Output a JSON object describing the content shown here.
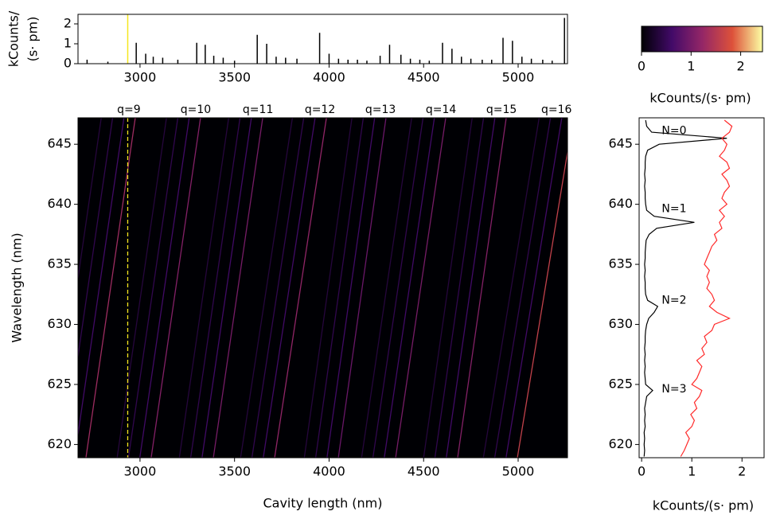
{
  "chart_data": [
    {
      "type": "stem",
      "ylabel": [
        "kCounts/",
        "(s· pm)"
      ],
      "color": "#000000",
      "xlim": [
        2672,
        5261
      ],
      "ylim": [
        0,
        2.48
      ],
      "xticks": [
        3000,
        3500,
        4000,
        4500,
        5000
      ],
      "yticks": [
        0,
        1,
        2
      ],
      "x": [
        2720,
        2830,
        2980,
        3030,
        3070,
        3120,
        3200,
        3300,
        3345,
        3390,
        3440,
        3500,
        3620,
        3670,
        3720,
        3770,
        3830,
        3950,
        4000,
        4050,
        4100,
        4150,
        4200,
        4270,
        4320,
        4380,
        4430,
        4480,
        4530,
        4600,
        4650,
        4700,
        4750,
        4810,
        4860,
        4920,
        4970,
        5020,
        5070,
        5130,
        5180,
        5245
      ],
      "values": [
        0.2,
        0.1,
        1.05,
        0.5,
        0.35,
        0.3,
        0.2,
        1.05,
        0.95,
        0.4,
        0.3,
        0.15,
        1.45,
        1.0,
        0.35,
        0.3,
        0.25,
        1.55,
        0.5,
        0.25,
        0.2,
        0.2,
        0.15,
        0.4,
        0.95,
        0.45,
        0.25,
        0.2,
        0.15,
        1.05,
        0.75,
        0.35,
        0.25,
        0.2,
        0.2,
        1.3,
        1.15,
        0.35,
        0.25,
        0.2,
        0.15,
        2.3
      ]
    },
    {
      "type": "heatmap",
      "xlabel": "Cavity length (nm)",
      "ylabel": "Wavelength (nm)",
      "xlim": [
        2672,
        5261
      ],
      "ylim": [
        618.9,
        647.2
      ],
      "xticks": [
        3000,
        3500,
        4000,
        4500,
        5000
      ],
      "yticks": [
        620,
        625,
        630,
        635,
        640,
        645
      ],
      "background": "#000004",
      "colormap": [
        "#000004",
        "#420a68",
        "#932667",
        "#dd513a",
        "#fcffa4"
      ],
      "cursor": {
        "x": 2935,
        "color": "#f5e61e"
      },
      "lines": [
        [
          2714,
          2975,
          1.3
        ],
        [
          2654,
          2915,
          0.6
        ],
        [
          2594,
          2855,
          0.45
        ],
        [
          2534,
          2795,
          0.35
        ],
        [
          3059,
          3320,
          1.1
        ],
        [
          2999,
          3260,
          0.6
        ],
        [
          2939,
          3200,
          0.45
        ],
        [
          2879,
          3140,
          0.35
        ],
        [
          3388,
          3649,
          1.0
        ],
        [
          3328,
          3589,
          0.6
        ],
        [
          3268,
          3529,
          0.45
        ],
        [
          3208,
          3469,
          0.35
        ],
        [
          3712,
          3986,
          1.2
        ],
        [
          3652,
          3926,
          0.6
        ],
        [
          3592,
          3866,
          0.45
        ],
        [
          3532,
          3806,
          0.35
        ],
        [
          4049,
          4301,
          0.9
        ],
        [
          3989,
          4241,
          0.6
        ],
        [
          3929,
          4181,
          0.45
        ],
        [
          3869,
          4121,
          0.35
        ],
        [
          4352,
          4617,
          1.0
        ],
        [
          4292,
          4557,
          0.6
        ],
        [
          4232,
          4497,
          0.45
        ],
        [
          4172,
          4437,
          0.35
        ],
        [
          4680,
          4937,
          1.1
        ],
        [
          4620,
          4877,
          0.6
        ],
        [
          4560,
          4817,
          0.45
        ],
        [
          4500,
          4757,
          0.35
        ],
        [
          4996,
          5291,
          1.6
        ],
        [
          4936,
          5231,
          0.6
        ],
        [
          4876,
          5171,
          0.45
        ],
        [
          4816,
          5111,
          0.35
        ]
      ],
      "annotations": [
        {
          "text": "q=9",
          "x": 2941
        },
        {
          "text": "q=10",
          "x": 3295
        },
        {
          "text": "q=11",
          "x": 3624
        },
        {
          "text": "q=12",
          "x": 3952
        },
        {
          "text": "q=13",
          "x": 4272
        },
        {
          "text": "q=14",
          "x": 4592
        },
        {
          "text": "q=15",
          "x": 4912
        },
        {
          "text": "q=16",
          "x": 5203
        }
      ],
      "colorbar": {
        "lim": [
          0,
          2.44
        ],
        "ticks": [
          0,
          1,
          2
        ],
        "label": "kCounts/(s· pm)"
      }
    },
    {
      "type": "line",
      "xlabel": "kCounts/(s· pm)",
      "xlim": [
        -0.05,
        2.44
      ],
      "ylim": [
        618.9,
        647.2
      ],
      "xticks": [
        0,
        1,
        2
      ],
      "yticks": [
        620,
        625,
        630,
        635,
        640,
        645
      ],
      "y": [
        619.0,
        619.5,
        620.0,
        620.5,
        621.0,
        621.5,
        622.0,
        622.5,
        623.0,
        623.5,
        624.0,
        624.5,
        625.0,
        625.5,
        626.0,
        626.5,
        627.0,
        627.5,
        628.0,
        628.5,
        629.0,
        629.5,
        630.0,
        630.5,
        631.0,
        631.5,
        632.0,
        632.5,
        633.0,
        633.5,
        634.0,
        634.5,
        635.0,
        635.5,
        636.0,
        636.5,
        637.0,
        637.5,
        638.0,
        638.5,
        639.0,
        639.5,
        640.0,
        640.5,
        641.0,
        641.5,
        642.0,
        642.5,
        643.0,
        643.5,
        644.0,
        644.5,
        645.0,
        645.5,
        646.0,
        646.5,
        647.0
      ],
      "series": [
        {
          "color": "#000000",
          "values": [
            0.05,
            0.06,
            0.05,
            0.06,
            0.05,
            0.07,
            0.06,
            0.07,
            0.06,
            0.08,
            0.1,
            0.22,
            0.08,
            0.07,
            0.06,
            0.07,
            0.06,
            0.07,
            0.06,
            0.07,
            0.07,
            0.08,
            0.1,
            0.14,
            0.25,
            0.32,
            0.12,
            0.08,
            0.07,
            0.07,
            0.06,
            0.07,
            0.06,
            0.07,
            0.07,
            0.08,
            0.09,
            0.15,
            0.3,
            1.05,
            0.25,
            0.1,
            0.08,
            0.07,
            0.07,
            0.06,
            0.07,
            0.06,
            0.07,
            0.07,
            0.08,
            0.12,
            0.35,
            1.7,
            0.2,
            0.1,
            0.08
          ]
        },
        {
          "color": "#ff2a2a",
          "values": [
            0.78,
            0.85,
            0.9,
            0.95,
            0.88,
            1.0,
            1.05,
            0.98,
            1.1,
            1.05,
            1.15,
            1.2,
            1.0,
            1.1,
            1.15,
            1.2,
            1.1,
            1.25,
            1.2,
            1.3,
            1.25,
            1.4,
            1.45,
            1.75,
            1.5,
            1.35,
            1.45,
            1.4,
            1.3,
            1.35,
            1.3,
            1.35,
            1.25,
            1.3,
            1.35,
            1.4,
            1.5,
            1.45,
            1.6,
            1.55,
            1.65,
            1.55,
            1.7,
            1.6,
            1.65,
            1.75,
            1.7,
            1.6,
            1.75,
            1.7,
            1.55,
            1.65,
            1.7,
            1.6,
            1.75,
            1.8,
            1.65
          ]
        }
      ],
      "annotations": [
        {
          "text": "N=0",
          "x": 0.4,
          "y": 646.1
        },
        {
          "text": "N=1",
          "x": 0.4,
          "y": 639.6
        },
        {
          "text": "N=2",
          "x": 0.4,
          "y": 632.0
        },
        {
          "text": "N=3",
          "x": 0.4,
          "y": 624.6
        }
      ]
    }
  ]
}
